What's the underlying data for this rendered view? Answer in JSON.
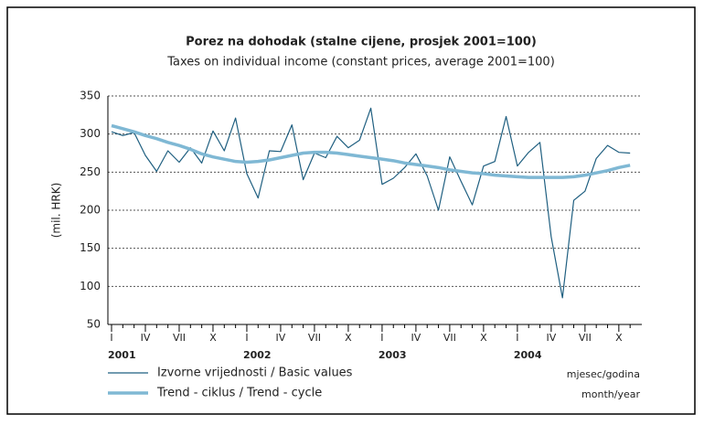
{
  "chart_data": {
    "type": "line",
    "title": "Porez na dohodak (stalne cijene, prosjek 2001=100)",
    "subtitle": "Taxes on individual income (constant prices, average 2001=100)",
    "y_label": "(mil. HRK)",
    "x_label": [
      "mjesec/godina",
      "month/year"
    ],
    "categories": [
      "I",
      null,
      null,
      "IV",
      null,
      null,
      "VII",
      null,
      null,
      "X",
      null,
      null,
      "I",
      null,
      null,
      "IV",
      null,
      null,
      "VII",
      null,
      null,
      "X",
      null,
      null,
      "I",
      null,
      null,
      "IV",
      null,
      null,
      "VII",
      null,
      null,
      "X",
      null,
      null,
      "I",
      null,
      null,
      "IV",
      null,
      null,
      "VII",
      null,
      null,
      "X",
      null
    ],
    "years": [
      "2001",
      "2002",
      "2003",
      "2004"
    ],
    "series": [
      {
        "name": "Izvorne vrijednosti / Basic values",
        "color": "#1f5f80",
        "values": [
          303,
          298,
          302,
          272,
          251,
          278,
          263,
          282,
          262,
          304,
          278,
          321,
          248,
          216,
          278,
          277,
          312,
          240,
          275,
          269,
          297,
          282,
          292,
          334,
          234,
          242,
          256,
          274,
          245,
          200,
          270,
          238,
          207,
          258,
          264,
          323,
          258,
          276,
          289,
          165,
          85,
          213,
          225,
          268,
          285,
          276,
          275
        ]
      },
      {
        "name": "Trend - ciklus / Trend - cycle",
        "color": "#7fb8d4",
        "values": [
          311,
          307,
          303,
          298,
          294,
          289,
          285,
          280,
          274,
          270,
          267,
          264,
          263,
          264,
          266,
          269,
          272,
          275,
          276,
          276,
          275,
          273,
          271,
          269,
          267,
          265,
          262,
          260,
          258,
          256,
          253,
          251,
          249,
          248,
          246,
          245,
          244,
          243,
          243,
          243,
          243,
          244,
          246,
          249,
          252,
          256,
          259
        ]
      }
    ],
    "ylim": [
      50,
      350
    ],
    "yticks": [
      50,
      100,
      150,
      200,
      250,
      300,
      350
    ],
    "grid": true
  }
}
